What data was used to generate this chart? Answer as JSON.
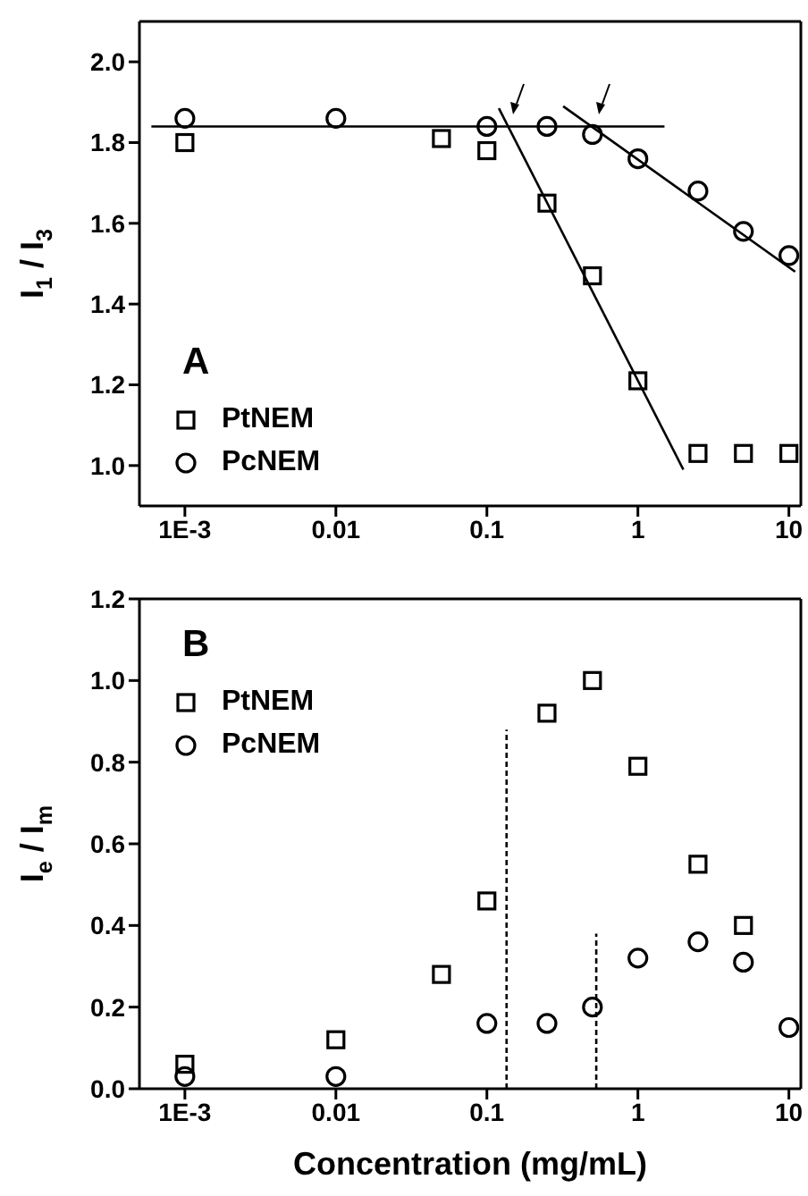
{
  "chart_data": [
    {
      "type": "scatter",
      "ylabel": "I$_{1}$ / I$_{3}$",
      "annotations": [
        "A"
      ],
      "legend": "bottom left",
      "log": "x",
      "xlim": [
        0.0005,
        12
      ],
      "xticks": [
        {
          "value": 0.001,
          "label": "1E-3"
        },
        0.01,
        0.1,
        1,
        10
      ],
      "ylim": [
        0.9,
        2.1
      ],
      "yticks": [
        {
          "value": 1,
          "label": "1.0"
        },
        1.2,
        1.4,
        1.6,
        1.8,
        {
          "value": 2,
          "label": "2.0"
        }
      ],
      "series": [
        {
          "name": "PtNEM",
          "color": "#000000",
          "marker": "square",
          "x": [
            0.001,
            0.05,
            0.1,
            0.25,
            0.5,
            1,
            2.5,
            5,
            10
          ],
          "values": [
            1.8,
            1.81,
            1.78,
            1.65,
            1.47,
            1.21,
            1.03,
            1.03,
            1.03
          ]
        },
        {
          "name": "PcNEM",
          "color": "#000000",
          "marker": "circle",
          "x": [
            0.001,
            0.01,
            0.1,
            0.25,
            0.5,
            1,
            2.5,
            5,
            10
          ],
          "values": [
            1.86,
            1.86,
            1.84,
            1.84,
            1.82,
            1.76,
            1.68,
            1.58,
            1.52
          ]
        },
        {
          "type": "line",
          "color": "#000000",
          "marker": "none",
          "line_style": "solid",
          "x": [
            0.0006,
            1.5
          ],
          "values": [
            1.84,
            1.84
          ]
        },
        {
          "type": "line",
          "color": "#000000",
          "marker": "none",
          "line_style": "solid",
          "x": [
            0.12,
            2
          ],
          "values": [
            1.885,
            0.99
          ]
        },
        {
          "type": "line",
          "color": "#000000",
          "marker": "none",
          "line_style": "solid",
          "x": [
            0.32,
            11
          ],
          "values": [
            1.89,
            1.48
          ]
        }
      ]
    },
    {
      "type": "scatter",
      "xlabel": "Concentration (mg/mL)",
      "ylabel": "I$_{e}$ / I$_{m}$",
      "annotations": [
        "B"
      ],
      "legend": "top left",
      "log": "x",
      "xlim": [
        0.0005,
        12
      ],
      "xticks": [
        {
          "value": 0.001,
          "label": "1E-3"
        },
        0.01,
        0.1,
        1,
        10
      ],
      "ylim": [
        0,
        1.2
      ],
      "yticks": [
        {
          "value": 0,
          "label": "0.0"
        },
        0.2,
        0.4,
        0.6,
        0.8,
        {
          "value": 1,
          "label": "1.0"
        },
        1.2
      ],
      "series": [
        {
          "name": "PtNEM",
          "color": "#000000",
          "marker": "square",
          "x": [
            0.001,
            0.01,
            0.05,
            0.1,
            0.25,
            0.5,
            1,
            2.5,
            5
          ],
          "values": [
            0.06,
            0.12,
            0.28,
            0.46,
            0.92,
            1.0,
            0.79,
            0.55,
            0.4
          ]
        },
        {
          "name": "PcNEM",
          "color": "#000000",
          "marker": "circle",
          "x": [
            0.001,
            0.01,
            0.1,
            0.25,
            0.5,
            1,
            2.5,
            5,
            10
          ],
          "values": [
            0.03,
            0.03,
            0.16,
            0.16,
            0.2,
            0.32,
            0.36,
            0.31,
            0.15
          ]
        },
        {
          "type": "line",
          "color": "#000000",
          "marker": "none",
          "line_style": "dashed",
          "x": [
            0.135,
            0.135
          ],
          "values": [
            0,
            0.88
          ]
        },
        {
          "type": "line",
          "color": "#000000",
          "marker": "none",
          "line_style": "dashed",
          "x": [
            0.53,
            0.53
          ],
          "values": [
            0,
            0.38
          ]
        }
      ]
    }
  ]
}
